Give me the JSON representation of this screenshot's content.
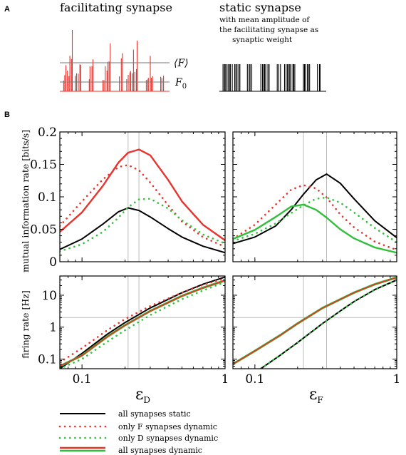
{
  "panel_a": {
    "label": "A",
    "left_title": "facilitating synapse",
    "right_title": "static synapse",
    "right_subtitle": [
      "with mean amplitude of",
      "the facilitating synapse as",
      "synaptic weight"
    ],
    "mean_label": "⟨F⟩",
    "f0_label_main": "F",
    "f0_label_sub": "0",
    "colors": {
      "facilitating": "#e8332c",
      "static": "#000000"
    }
  },
  "panel_b": {
    "label": "B"
  },
  "legend": {
    "items": [
      {
        "label": "all synapses static",
        "style": "solid-black"
      },
      {
        "label": "only F synapses dynamic",
        "style": "dotted-red"
      },
      {
        "label": "only D synapses dynamic",
        "style": "dotted-green"
      },
      {
        "label": "all synapses dynamic",
        "style": "double-red-green"
      }
    ]
  },
  "colors": {
    "static": "#000000",
    "F_dynamic": "#e8332c",
    "D_dynamic": "#2fbf3a",
    "all_dynamic_red": "#e8332c",
    "all_dynamic_green": "#2fbf3a",
    "grid": "#aaaaaa"
  },
  "chart_data": [
    {
      "type": "line",
      "id": "mi_eps_d",
      "xscale": "log",
      "xlim": [
        0.07,
        1
      ],
      "ylim": [
        0,
        0.2
      ],
      "ylabel": "mutual information rate [bits/s]",
      "yticks": [
        0,
        0.05,
        0.1,
        0.15,
        0.2
      ],
      "ytick_labels": [
        "0",
        "0.05",
        "0.1",
        "0.15",
        "0.2"
      ],
      "vlines": [
        0.21,
        0.25
      ],
      "series": [
        {
          "key": "static",
          "style": "solid-black",
          "x": [
            0.07,
            0.1,
            0.14,
            0.18,
            0.21,
            0.25,
            0.3,
            0.4,
            0.5,
            0.7,
            1.0
          ],
          "values": [
            0.019,
            0.035,
            0.058,
            0.077,
            0.083,
            0.079,
            0.069,
            0.051,
            0.038,
            0.024,
            0.014
          ]
        },
        {
          "key": "F_dynamic",
          "style": "dotted-red",
          "x": [
            0.07,
            0.1,
            0.14,
            0.18,
            0.21,
            0.25,
            0.3,
            0.4,
            0.5,
            0.7,
            1.0
          ],
          "values": [
            0.055,
            0.093,
            0.127,
            0.146,
            0.149,
            0.141,
            0.122,
            0.087,
            0.062,
            0.038,
            0.023
          ]
        },
        {
          "key": "D_dynamic",
          "style": "dotted-green",
          "x": [
            0.07,
            0.1,
            0.14,
            0.18,
            0.21,
            0.25,
            0.3,
            0.4,
            0.5,
            0.7,
            1.0
          ],
          "values": [
            0.016,
            0.027,
            0.046,
            0.068,
            0.084,
            0.096,
            0.097,
            0.082,
            0.064,
            0.042,
            0.028
          ]
        },
        {
          "key": "all_dynamic",
          "style": "solid-red",
          "x": [
            0.07,
            0.1,
            0.14,
            0.18,
            0.21,
            0.25,
            0.3,
            0.4,
            0.5,
            0.7,
            1.0
          ],
          "values": [
            0.046,
            0.076,
            0.117,
            0.153,
            0.168,
            0.173,
            0.164,
            0.126,
            0.093,
            0.057,
            0.033
          ]
        }
      ]
    },
    {
      "type": "line",
      "id": "mi_eps_f",
      "xscale": "log",
      "xlim": [
        0.07,
        1
      ],
      "ylim": [
        0,
        0.2
      ],
      "vlines": [
        0.22,
        0.32
      ],
      "series": [
        {
          "key": "static",
          "style": "solid-black",
          "x": [
            0.07,
            0.1,
            0.14,
            0.18,
            0.22,
            0.27,
            0.32,
            0.4,
            0.5,
            0.7,
            1.0
          ],
          "values": [
            0.028,
            0.038,
            0.055,
            0.08,
            0.104,
            0.126,
            0.135,
            0.121,
            0.097,
            0.063,
            0.037
          ]
        },
        {
          "key": "F_dynamic",
          "style": "dotted-red",
          "x": [
            0.07,
            0.1,
            0.14,
            0.18,
            0.22,
            0.27,
            0.32,
            0.4,
            0.5,
            0.7,
            1.0
          ],
          "values": [
            0.035,
            0.057,
            0.088,
            0.111,
            0.118,
            0.113,
            0.099,
            0.073,
            0.053,
            0.031,
            0.018
          ]
        },
        {
          "key": "D_dynamic",
          "style": "dotted-green",
          "x": [
            0.07,
            0.1,
            0.14,
            0.18,
            0.22,
            0.27,
            0.32,
            0.4,
            0.5,
            0.7,
            1.0
          ],
          "values": [
            0.032,
            0.043,
            0.059,
            0.075,
            0.087,
            0.097,
            0.099,
            0.091,
            0.076,
            0.052,
            0.03
          ]
        },
        {
          "key": "all_dynamic",
          "style": "solid-green",
          "x": [
            0.07,
            0.1,
            0.14,
            0.18,
            0.22,
            0.27,
            0.32,
            0.4,
            0.5,
            0.7,
            1.0
          ],
          "values": [
            0.035,
            0.049,
            0.069,
            0.085,
            0.088,
            0.08,
            0.068,
            0.05,
            0.036,
            0.022,
            0.014
          ]
        }
      ]
    },
    {
      "type": "line",
      "id": "rate_eps_d",
      "xscale": "log",
      "xlim": [
        0.07,
        1
      ],
      "yscale": "log",
      "ylim": [
        0.05,
        40
      ],
      "ylabel": "firing rate [Hz]",
      "xlabel_main": "ε",
      "xlabel_sub": "D",
      "yticks": [
        0.1,
        1,
        10
      ],
      "ytick_labels": [
        "0.1",
        "1",
        "10"
      ],
      "xticks": [
        0.1,
        1
      ],
      "xtick_labels": [
        "0.1",
        "1"
      ],
      "vlines": [
        0.21,
        0.25
      ],
      "hline": 2,
      "series": [
        {
          "key": "static",
          "style": "solid-black",
          "x": [
            0.07,
            0.1,
            0.15,
            0.2,
            0.3,
            0.5,
            0.7,
            1.0
          ],
          "values": [
            0.05,
            0.15,
            0.6,
            1.4,
            4.0,
            12.0,
            22.0,
            37.0
          ]
        },
        {
          "key": "F_dynamic",
          "style": "dotted-red",
          "x": [
            0.07,
            0.1,
            0.15,
            0.2,
            0.3,
            0.5,
            0.7,
            1.0
          ],
          "values": [
            0.08,
            0.22,
            0.8,
            1.8,
            4.6,
            12.0,
            21.0,
            34.0
          ]
        },
        {
          "key": "D_dynamic",
          "style": "dotted-green",
          "x": [
            0.07,
            0.1,
            0.15,
            0.2,
            0.3,
            0.5,
            0.7,
            1.0
          ],
          "values": [
            0.05,
            0.1,
            0.35,
            0.8,
            2.4,
            7.5,
            14.0,
            26.0
          ]
        },
        {
          "key": "all_dynamic",
          "style": "double-red-green",
          "x": [
            0.07,
            0.1,
            0.15,
            0.2,
            0.3,
            0.5,
            0.7,
            1.0
          ],
          "values": [
            0.06,
            0.13,
            0.5,
            1.15,
            3.2,
            9.5,
            17.0,
            29.0
          ]
        }
      ]
    },
    {
      "type": "line",
      "id": "rate_eps_f",
      "xscale": "log",
      "xlim": [
        0.07,
        1
      ],
      "yscale": "log",
      "ylim": [
        0.05,
        40
      ],
      "xlabel_main": "ε",
      "xlabel_sub": "F",
      "xticks": [
        0.1,
        1
      ],
      "xtick_labels": [
        "0.1",
        "1"
      ],
      "vlines": [
        0.22,
        0.32
      ],
      "hline": 2,
      "series": [
        {
          "key": "static",
          "style": "solid-black",
          "x": [
            0.11,
            0.15,
            0.2,
            0.3,
            0.4,
            0.5,
            0.7,
            1.0
          ],
          "values": [
            0.05,
            0.13,
            0.33,
            1.3,
            3.2,
            6.3,
            15.0,
            30.0
          ]
        },
        {
          "key": "F_dynamic",
          "style": "dotted-red",
          "x": [
            0.07,
            0.1,
            0.15,
            0.2,
            0.3,
            0.5,
            0.7,
            1.0
          ],
          "values": [
            0.07,
            0.18,
            0.55,
            1.3,
            4.0,
            12.0,
            22.0,
            36.0
          ]
        },
        {
          "key": "D_dynamic",
          "style": "dotted-green",
          "x": [
            0.11,
            0.15,
            0.2,
            0.3,
            0.4,
            0.5,
            0.7,
            1.0
          ],
          "values": [
            0.05,
            0.13,
            0.33,
            1.3,
            3.2,
            6.3,
            15.0,
            30.0
          ]
        },
        {
          "key": "all_dynamic",
          "style": "double-red-green",
          "x": [
            0.07,
            0.1,
            0.15,
            0.2,
            0.3,
            0.5,
            0.7,
            1.0
          ],
          "values": [
            0.07,
            0.18,
            0.55,
            1.3,
            4.0,
            12.0,
            22.0,
            36.0
          ]
        }
      ]
    }
  ]
}
